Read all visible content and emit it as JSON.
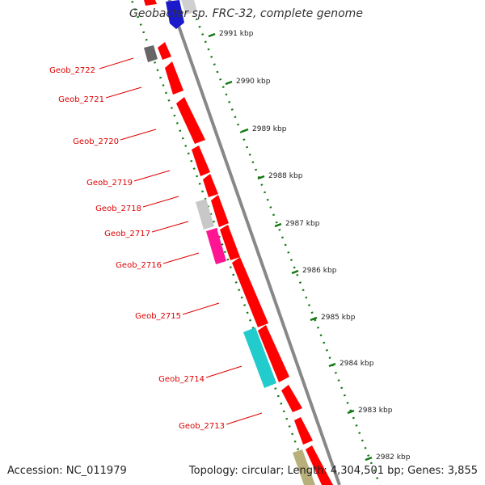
{
  "title": "Geobacter sp. FRC-32, complete genome",
  "accession_text": "Accession: NC_011979",
  "summary_text": "Topology: circular; Length: 4,304,501 bp; Genes: 3,855",
  "colors": {
    "cds": "#ff0000",
    "backbone": "#888888",
    "tick": "#117711",
    "label": "#dd0000",
    "text": "#222222"
  },
  "ticks": [
    {
      "label": "2991 kbp"
    },
    {
      "label": "2990 kbp"
    },
    {
      "label": "2989 kbp"
    },
    {
      "label": "2988 kbp"
    },
    {
      "label": "2987 kbp"
    },
    {
      "label": "2986 kbp"
    },
    {
      "label": "2985 kbp"
    },
    {
      "label": "2984 kbp"
    },
    {
      "label": "2983 kbp"
    },
    {
      "label": "2982 kbp"
    }
  ],
  "genes": [
    {
      "label": "Geob_2722",
      "color": "#ff0000"
    },
    {
      "label": "Geob_2721",
      "color": "#ff0000"
    },
    {
      "label": "Geob_2720",
      "color": "#ff0000"
    },
    {
      "label": "Geob_2719",
      "color": "#ff0000"
    },
    {
      "label": "Geob_2718",
      "color": "#ff0000"
    },
    {
      "label": "Geob_2717",
      "color": "#ff0000"
    },
    {
      "label": "Geob_2716",
      "color": "#ff0000"
    },
    {
      "label": "Geob_2715",
      "color": "#ff0000"
    },
    {
      "label": "Geob_2714",
      "color": "#ff0000"
    },
    {
      "label": "Geob_2713",
      "color": "#ff0000"
    }
  ]
}
